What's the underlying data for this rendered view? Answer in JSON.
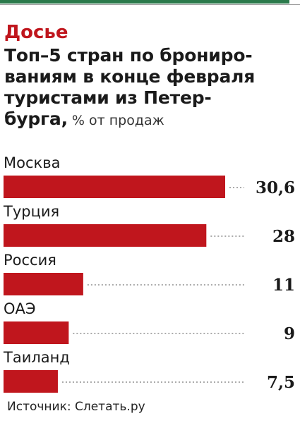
{
  "header": {
    "rubric": "Досье",
    "title_lines": [
      "Топ–5 стран по брониро-",
      "ваниям в конце февраля",
      "туристами из Петер-",
      "бурга,"
    ],
    "subtitle": " % от продаж"
  },
  "colors": {
    "bar": "#c0161d",
    "accent_bar": "#2b7a4b"
  },
  "chart_data": {
    "type": "bar",
    "orientation": "horizontal",
    "title": "Топ–5 стран по бронированиям в конце февраля туристами из Петербурга",
    "unit": "% от продаж",
    "categories": [
      "Москва",
      "Турция",
      "Россия",
      "ОАЭ",
      "Таиланд"
    ],
    "values": [
      30.6,
      28,
      11,
      9,
      7.5
    ],
    "value_labels": [
      "30,6",
      "28",
      "11",
      "9",
      "7,5"
    ],
    "xlim": [
      0,
      32
    ],
    "grid": false
  },
  "footer": {
    "source": "Источник: Слетать.ру"
  }
}
